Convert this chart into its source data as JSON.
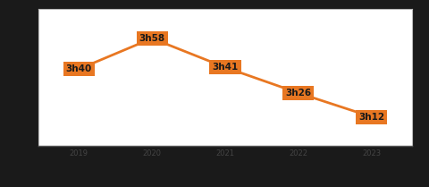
{
  "years": [
    2019,
    2020,
    2021,
    2022,
    2023
  ],
  "values": [
    220,
    238,
    221,
    206,
    192
  ],
  "labels": [
    "3h40",
    "3h58",
    "3h41",
    "3h26",
    "3h12"
  ],
  "line_color": "#E87722",
  "label_bg_color": "#E87722",
  "label_text_color": "#1a1a1a",
  "background_color": "#ffffff",
  "outer_background": "#1a1a1a",
  "border_color": "#bbbbbb",
  "label_fontsize": 7.5,
  "tick_fontsize": 6.0,
  "ylim": [
    175,
    255
  ],
  "xlim": [
    2018.45,
    2023.55
  ]
}
